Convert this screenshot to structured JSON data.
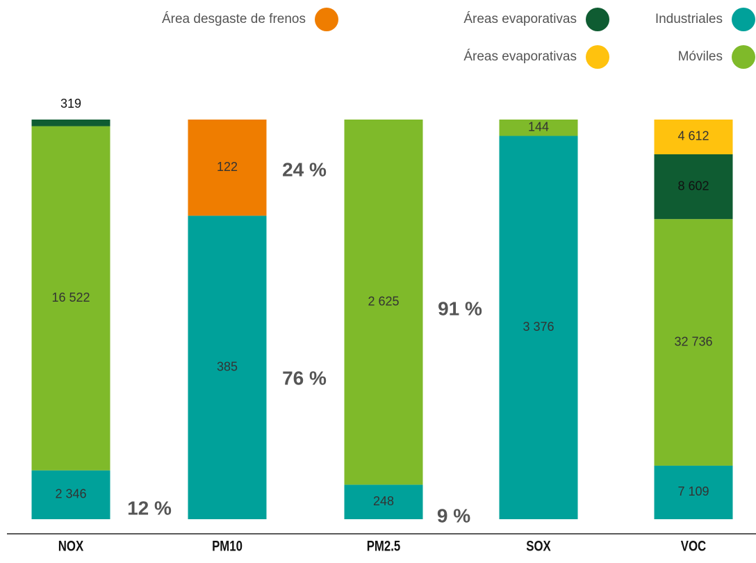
{
  "chart_data": {
    "type": "stacked_bar_100",
    "categories": [
      "NOX",
      "PM10",
      "PM2.5",
      "SOX",
      "VOC"
    ],
    "series": [
      {
        "name": "Área desgaste de frenos",
        "color": "#ef7d00",
        "values": [
          null,
          122,
          null,
          null,
          null
        ],
        "value_labels": [
          null,
          "122",
          null,
          null,
          null
        ]
      },
      {
        "name": "Áreas evaporativas",
        "color": "#0f5c32",
        "values": [
          319,
          null,
          null,
          null,
          8602
        ],
        "value_labels": [
          "319",
          null,
          null,
          null,
          "8 602"
        ]
      },
      {
        "name": "Industriales",
        "color": "#00a19a",
        "values": [
          2346,
          385,
          248,
          3376,
          7109
        ],
        "value_labels": [
          "2 346",
          "385",
          "248",
          "3 376",
          "7 109"
        ]
      },
      {
        "name": "Áreas evaporativas",
        "color": "#ffc20e",
        "values": [
          null,
          null,
          null,
          null,
          4612
        ],
        "value_labels": [
          null,
          null,
          null,
          null,
          "4 612"
        ]
      },
      {
        "name": "Móviles",
        "color": "#7fba2a",
        "values": [
          16522,
          null,
          2625,
          144,
          32736
        ],
        "value_labels": [
          "16 522",
          null,
          "2 625",
          "144",
          "32 736"
        ]
      }
    ],
    "annotations": [
      "12 %",
      "24 %",
      "76 %",
      "91 %",
      "9 %"
    ]
  }
}
